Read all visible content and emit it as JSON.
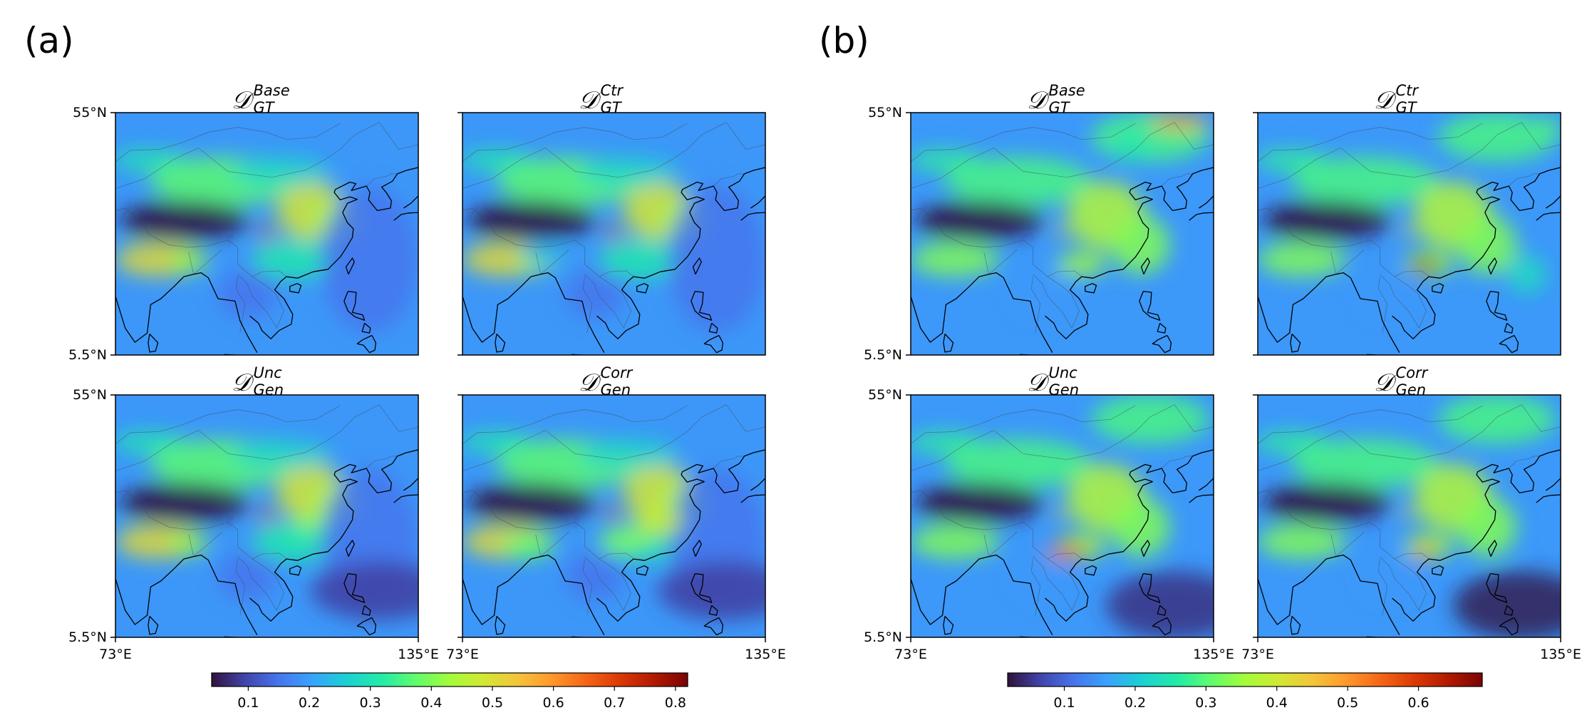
{
  "figure": {
    "panels": [
      {
        "letter": "(a)",
        "colorbar": {
          "vmin": 0.04,
          "vmax": 0.82,
          "ticks": [
            "0.1",
            "0.2",
            "0.3",
            "0.4",
            "0.5",
            "0.6",
            "0.7",
            "0.8"
          ],
          "tick_values": [
            0.1,
            0.2,
            0.3,
            0.4,
            0.5,
            0.6,
            0.7,
            0.8
          ],
          "colormap": "turbo"
        },
        "maps": [
          {
            "title_main": "𝒟",
            "title_sup": "Base",
            "title_sub": "GT",
            "variant": "a-base"
          },
          {
            "title_main": "𝒟",
            "title_sup": "Ctr",
            "title_sub": "GT",
            "variant": "a-ctr"
          },
          {
            "title_main": "𝒟",
            "title_sup": "Unc",
            "title_sub": "Gen",
            "variant": "a-unc"
          },
          {
            "title_main": "𝒟",
            "title_sup": "Corr",
            "title_sub": "Gen",
            "variant": "a-corr"
          }
        ]
      },
      {
        "letter": "(b)",
        "colorbar": {
          "vmin": 0.02,
          "vmax": 0.69,
          "ticks": [
            "0.1",
            "0.2",
            "0.3",
            "0.4",
            "0.5",
            "0.6"
          ],
          "tick_values": [
            0.1,
            0.2,
            0.3,
            0.4,
            0.5,
            0.6
          ],
          "colormap": "turbo"
        },
        "maps": [
          {
            "title_main": "𝒟",
            "title_sup": "Base",
            "title_sub": "GT",
            "variant": "b-base"
          },
          {
            "title_main": "𝒟",
            "title_sup": "Ctr",
            "title_sub": "GT",
            "variant": "b-ctr"
          },
          {
            "title_main": "𝒟",
            "title_sup": "Unc",
            "title_sub": "Gen",
            "variant": "b-unc"
          },
          {
            "title_main": "𝒟",
            "title_sup": "Corr",
            "title_sub": "Gen",
            "variant": "b-corr"
          }
        ]
      }
    ],
    "axis_labels": {
      "lat_top": "55°N",
      "lat_bottom": "5.5°N",
      "lon_left": "73°E",
      "lon_right": "135°E"
    }
  },
  "chart_data": [
    {
      "type": "heatmap",
      "panel": "(a)",
      "subplots": [
        "Base GT",
        "Ctr GT",
        "Unc Gen",
        "Corr Gen"
      ],
      "x_range": [
        "73°E",
        "135°E"
      ],
      "y_range": [
        "5.5°N",
        "55°N"
      ],
      "colorbar_range": [
        0.04,
        0.82
      ],
      "colorbar_ticks": [
        0.1,
        0.2,
        0.3,
        0.4,
        0.5,
        0.6,
        0.7,
        0.8
      ]
    },
    {
      "type": "heatmap",
      "panel": "(b)",
      "subplots": [
        "Base GT",
        "Ctr GT",
        "Unc Gen",
        "Corr Gen"
      ],
      "x_range": [
        "73°E",
        "135°E"
      ],
      "y_range": [
        "5.5°N",
        "55°N"
      ],
      "colorbar_range": [
        0.02,
        0.69
      ],
      "colorbar_ticks": [
        0.1,
        0.2,
        0.3,
        0.4,
        0.5,
        0.6
      ]
    }
  ]
}
